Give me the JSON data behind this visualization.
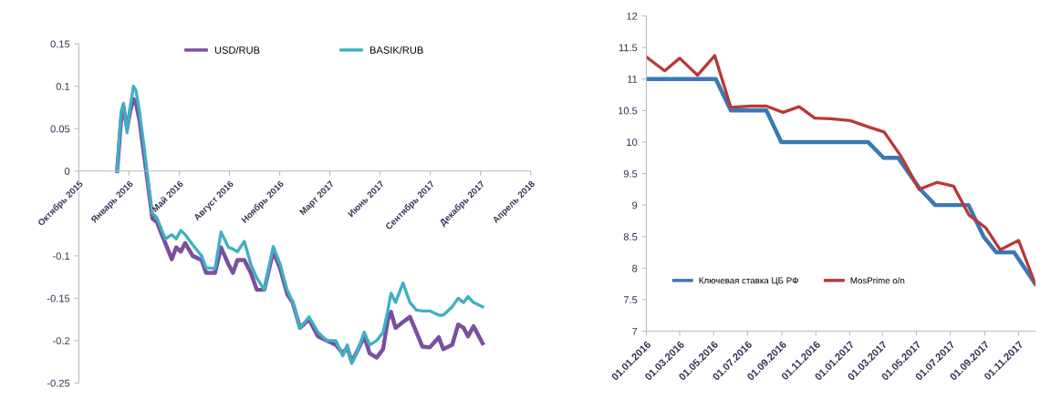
{
  "chart_data": [
    {
      "type": "line",
      "legend": "top",
      "grid": false,
      "x": [
        "2015-12-31",
        "2016-01-08",
        "2016-01-13",
        "2016-01-20",
        "2016-01-26",
        "2016-02-02",
        "2016-02-07",
        "2016-02-14",
        "2016-02-23",
        "2016-03-02",
        "2016-03-11",
        "2016-03-20",
        "2016-03-30",
        "2016-04-06",
        "2016-04-19",
        "2016-04-28",
        "2016-05-07",
        "2016-05-16",
        "2016-05-31",
        "2016-06-18",
        "2016-06-27",
        "2016-07-15",
        "2016-07-27",
        "2016-08-11",
        "2016-08-20",
        "2016-08-29",
        "2016-09-12",
        "2016-09-25",
        "2016-10-07",
        "2016-10-22",
        "2016-11-09",
        "2016-11-23",
        "2016-12-07",
        "2016-12-18",
        "2017-01-02",
        "2017-01-20",
        "2017-02-07",
        "2017-02-25",
        "2017-03-15",
        "2017-03-29",
        "2017-04-07",
        "2017-04-16",
        "2017-04-29",
        "2017-05-11",
        "2017-05-22",
        "2017-06-05",
        "2017-06-18",
        "2017-06-27",
        "2017-07-04",
        "2017-07-13",
        "2017-07-28",
        "2017-08-11",
        "2017-08-24",
        "2017-09-05",
        "2017-09-20",
        "2017-10-08",
        "2017-10-17",
        "2017-11-04",
        "2017-11-16",
        "2017-11-27",
        "2017-12-06",
        "2017-12-17",
        "2018-01-04"
      ],
      "series": [
        {
          "name": "USD/RUB",
          "color": "#7b4fa0",
          "values": [
            0,
            0.06,
            0.075,
            0.05,
            0.07,
            0.085,
            0.08,
            0.06,
            0.02,
            -0.015,
            -0.056,
            -0.06,
            -0.075,
            -0.085,
            -0.104,
            -0.09,
            -0.095,
            -0.085,
            -0.1,
            -0.105,
            -0.12,
            -0.12,
            -0.09,
            -0.11,
            -0.12,
            -0.105,
            -0.105,
            -0.12,
            -0.14,
            -0.14,
            -0.095,
            -0.115,
            -0.145,
            -0.155,
            -0.185,
            -0.175,
            -0.195,
            -0.2,
            -0.205,
            -0.215,
            -0.208,
            -0.225,
            -0.21,
            -0.195,
            -0.215,
            -0.22,
            -0.21,
            -0.177,
            -0.166,
            -0.185,
            -0.178,
            -0.172,
            -0.19,
            -0.207,
            -0.208,
            -0.196,
            -0.21,
            -0.205,
            -0.181,
            -0.185,
            -0.195,
            -0.183,
            -0.203
          ]
        },
        {
          "name": "BASIK/RUB",
          "color": "#3fb0c3",
          "values": [
            0,
            0.07,
            0.08,
            0.045,
            0.075,
            0.1,
            0.095,
            0.07,
            0.03,
            -0.01,
            -0.05,
            -0.055,
            -0.07,
            -0.08,
            -0.075,
            -0.08,
            -0.07,
            -0.075,
            -0.087,
            -0.1,
            -0.114,
            -0.115,
            -0.072,
            -0.09,
            -0.092,
            -0.095,
            -0.083,
            -0.11,
            -0.126,
            -0.14,
            -0.089,
            -0.11,
            -0.14,
            -0.154,
            -0.185,
            -0.172,
            -0.19,
            -0.2,
            -0.2,
            -0.218,
            -0.205,
            -0.227,
            -0.21,
            -0.19,
            -0.205,
            -0.2,
            -0.19,
            -0.166,
            -0.144,
            -0.155,
            -0.132,
            -0.155,
            -0.164,
            -0.165,
            -0.165,
            -0.17,
            -0.17,
            -0.16,
            -0.15,
            -0.155,
            -0.148,
            -0.155,
            -0.16
          ]
        }
      ],
      "xlim": [
        "2015-10-15",
        "2018-04-11"
      ],
      "xticks": [
        {
          "value": "2015-10-15",
          "label": "Октябрь 2015"
        },
        {
          "value": "2016-01-24",
          "label": "Январь 2016"
        },
        {
          "value": "2016-05-04",
          "label": "Май 2016"
        },
        {
          "value": "2016-08-13",
          "label": "Август 2016"
        },
        {
          "value": "2016-11-22",
          "label": "Ноябрь 2016"
        },
        {
          "value": "2017-03-03",
          "label": "Март 2017"
        },
        {
          "value": "2017-06-12",
          "label": "Июнь 2017"
        },
        {
          "value": "2017-09-21",
          "label": "Сентябрь 2017"
        },
        {
          "value": "2017-12-31",
          "label": "Декабрь 2017"
        },
        {
          "value": "2018-04-11",
          "label": "Апрель 2018"
        }
      ],
      "ylim": [
        -0.25,
        0.15
      ],
      "yticks": [
        -0.25,
        -0.2,
        -0.15,
        -0.1,
        0,
        0.05,
        0.1,
        0.15
      ]
    },
    {
      "type": "line",
      "legend": "bottom left",
      "grid": false,
      "series": [
        {
          "name": "Ключевая ставка ЦБ РФ",
          "color": "#3a78b5",
          "x": [
            "2016-01-01",
            "2016-05-05",
            "2016-06-01",
            "2016-08-04",
            "2016-08-31",
            "2017-02-03",
            "2017-03-03",
            "2017-03-29",
            "2017-05-08",
            "2017-06-04",
            "2017-08-03",
            "2017-08-30",
            "2017-09-22",
            "2017-10-24",
            "2017-12-01"
          ],
          "values": [
            11,
            11,
            10.5,
            10.5,
            10,
            10,
            9.75,
            9.75,
            9.25,
            9,
            9,
            8.5,
            8.25,
            8.25,
            7.75
          ]
        },
        {
          "name": "MosPrime o/n",
          "color": "#b8393a",
          "x": [
            "2016-01-01",
            "2016-02-03",
            "2016-03-01",
            "2016-04-02",
            "2016-05-03",
            "2016-06-01",
            "2016-07-07",
            "2016-08-04",
            "2016-09-03",
            "2016-10-02",
            "2016-10-30",
            "2016-11-29",
            "2017-01-02",
            "2017-02-04",
            "2017-03-04",
            "2017-04-03",
            "2017-05-06",
            "2017-06-07",
            "2017-07-07",
            "2017-08-04",
            "2017-09-03",
            "2017-09-29",
            "2017-11-01",
            "2017-12-01"
          ],
          "values": [
            11.35,
            11.13,
            11.33,
            11.06,
            11.37,
            10.55,
            10.57,
            10.57,
            10.47,
            10.56,
            10.38,
            10.37,
            10.34,
            10.24,
            10.16,
            9.78,
            9.25,
            9.36,
            9.3,
            8.84,
            8.64,
            8.29,
            8.44,
            7.75
          ]
        }
      ],
      "xlim": [
        "2016-01-01",
        "2017-12-01"
      ],
      "xticks": [
        {
          "value": "2016-01-01",
          "label": "01.01.2016"
        },
        {
          "value": "2016-03-01",
          "label": "01.03.2016"
        },
        {
          "value": "2016-05-01",
          "label": "01.05.2016"
        },
        {
          "value": "2016-07-01",
          "label": "01.07.2016"
        },
        {
          "value": "2016-09-01",
          "label": "01.09.2016"
        },
        {
          "value": "2016-11-01",
          "label": "01.11.2016"
        },
        {
          "value": "2017-01-01",
          "label": "01.01.2017"
        },
        {
          "value": "2017-03-01",
          "label": "01.03.2017"
        },
        {
          "value": "2017-05-01",
          "label": "01.05.2017"
        },
        {
          "value": "2017-07-01",
          "label": "01.07.2017"
        },
        {
          "value": "2017-09-01",
          "label": "01.09.2017"
        },
        {
          "value": "2017-11-01",
          "label": "01.11.2017"
        }
      ],
      "ylim": [
        7,
        12
      ],
      "yticks": [
        7,
        7.5,
        8,
        8.5,
        9,
        9.5,
        10,
        10.5,
        11,
        11.5,
        12
      ]
    }
  ]
}
